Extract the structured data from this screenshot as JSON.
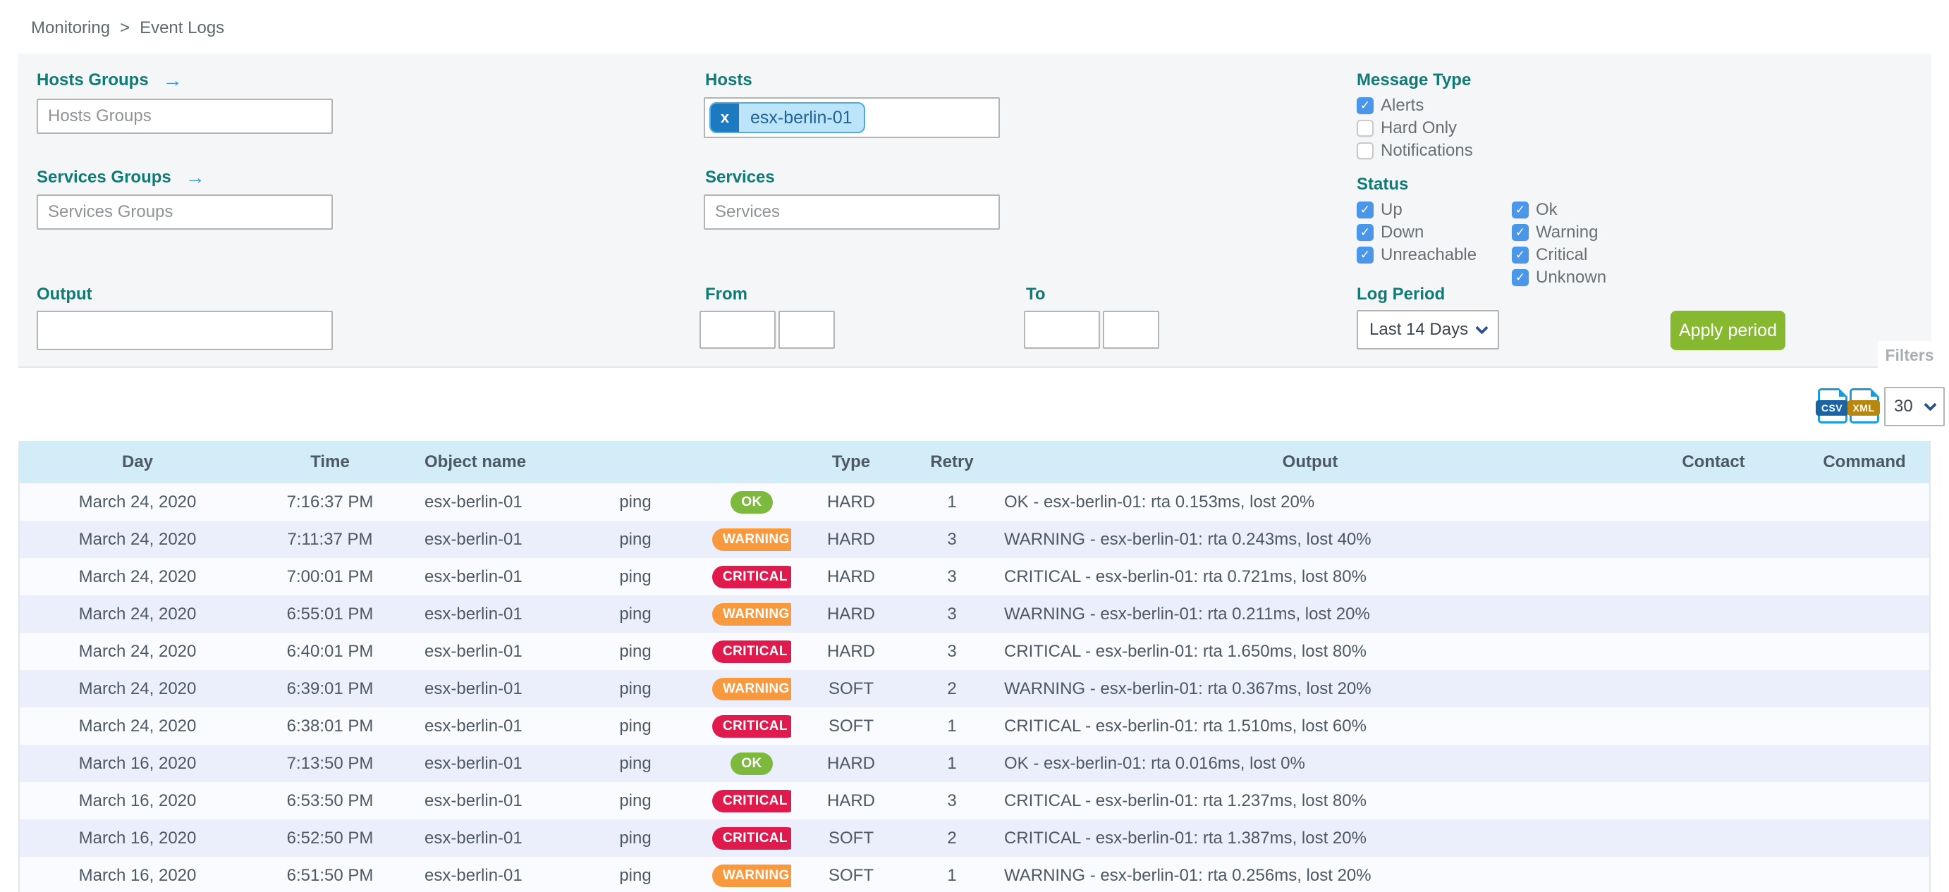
{
  "breadcrumb": {
    "items": [
      "Monitoring",
      "Event Logs"
    ],
    "separator": ">"
  },
  "filters": {
    "panel_label": "Filters",
    "hosts_groups": {
      "label": "Hosts Groups",
      "arrow_icon": "→",
      "placeholder": "Hosts Groups",
      "value": ""
    },
    "hosts": {
      "label": "Hosts",
      "selected_tags": [
        "esx-berlin-01"
      ],
      "remove_icon": "x"
    },
    "services_groups": {
      "label": "Services Groups",
      "arrow_icon": "→",
      "placeholder": "Services Groups",
      "value": ""
    },
    "services": {
      "label": "Services",
      "placeholder": "Services",
      "value": ""
    },
    "message_type": {
      "label": "Message Type",
      "options": [
        {
          "label": "Alerts",
          "checked": true
        },
        {
          "label": "Hard Only",
          "checked": false
        },
        {
          "label": "Notifications",
          "checked": false
        }
      ]
    },
    "status": {
      "label": "Status",
      "columns": [
        [
          {
            "label": "Up",
            "checked": true
          },
          {
            "label": "Down",
            "checked": true
          },
          {
            "label": "Unreachable",
            "checked": true
          }
        ],
        [
          {
            "label": "Ok",
            "checked": true
          },
          {
            "label": "Warning",
            "checked": true
          },
          {
            "label": "Critical",
            "checked": true
          },
          {
            "label": "Unknown",
            "checked": true
          }
        ]
      ]
    },
    "output": {
      "label": "Output",
      "value": ""
    },
    "from": {
      "label": "From",
      "date_value": "",
      "time_value": ""
    },
    "to": {
      "label": "To",
      "date_value": "",
      "time_value": ""
    },
    "log_period": {
      "label": "Log Period",
      "selected": "Last 14 Days"
    },
    "apply_button": "Apply period"
  },
  "toolbar": {
    "csv_icon": "CSV",
    "xml_icon": "XML",
    "page_size": "30"
  },
  "table": {
    "columns": [
      "Day",
      "Time",
      "Object name",
      "",
      "",
      "Type",
      "Retry",
      "Output",
      "Contact",
      "Command"
    ],
    "status_colors": {
      "OK": "#7cb93c",
      "WARNING": "#f8993d",
      "CRITICAL": "#e11a4d"
    },
    "partial_bottom_row": true,
    "rows": [
      {
        "day": "March 24, 2020",
        "time": "7:16:37 PM",
        "object": "esx-berlin-01",
        "service": "ping",
        "status": "OK",
        "type": "HARD",
        "retry": "1",
        "output": "OK - esx-berlin-01: rta 0.153ms, lost 20%",
        "contact": "",
        "command": ""
      },
      {
        "day": "March 24, 2020",
        "time": "7:11:37 PM",
        "object": "esx-berlin-01",
        "service": "ping",
        "status": "WARNING",
        "type": "HARD",
        "retry": "3",
        "output": "WARNING - esx-berlin-01: rta 0.243ms, lost 40%",
        "contact": "",
        "command": ""
      },
      {
        "day": "March 24, 2020",
        "time": "7:00:01 PM",
        "object": "esx-berlin-01",
        "service": "ping",
        "status": "CRITICAL",
        "type": "HARD",
        "retry": "3",
        "output": "CRITICAL - esx-berlin-01: rta 0.721ms, lost 80%",
        "contact": "",
        "command": ""
      },
      {
        "day": "March 24, 2020",
        "time": "6:55:01 PM",
        "object": "esx-berlin-01",
        "service": "ping",
        "status": "WARNING",
        "type": "HARD",
        "retry": "3",
        "output": "WARNING - esx-berlin-01: rta 0.211ms, lost 20%",
        "contact": "",
        "command": ""
      },
      {
        "day": "March 24, 2020",
        "time": "6:40:01 PM",
        "object": "esx-berlin-01",
        "service": "ping",
        "status": "CRITICAL",
        "type": "HARD",
        "retry": "3",
        "output": "CRITICAL - esx-berlin-01: rta 1.650ms, lost 80%",
        "contact": "",
        "command": ""
      },
      {
        "day": "March 24, 2020",
        "time": "6:39:01 PM",
        "object": "esx-berlin-01",
        "service": "ping",
        "status": "WARNING",
        "type": "SOFT",
        "retry": "2",
        "output": "WARNING - esx-berlin-01: rta 0.367ms, lost 20%",
        "contact": "",
        "command": ""
      },
      {
        "day": "March 24, 2020",
        "time": "6:38:01 PM",
        "object": "esx-berlin-01",
        "service": "ping",
        "status": "CRITICAL",
        "type": "SOFT",
        "retry": "1",
        "output": "CRITICAL - esx-berlin-01: rta 1.510ms, lost 60%",
        "contact": "",
        "command": ""
      },
      {
        "day": "March 16, 2020",
        "time": "7:13:50 PM",
        "object": "esx-berlin-01",
        "service": "ping",
        "status": "OK",
        "type": "HARD",
        "retry": "1",
        "output": "OK - esx-berlin-01: rta 0.016ms, lost 0%",
        "contact": "",
        "command": ""
      },
      {
        "day": "March 16, 2020",
        "time": "6:53:50 PM",
        "object": "esx-berlin-01",
        "service": "ping",
        "status": "CRITICAL",
        "type": "HARD",
        "retry": "3",
        "output": "CRITICAL - esx-berlin-01: rta 1.237ms, lost 80%",
        "contact": "",
        "command": ""
      },
      {
        "day": "March 16, 2020",
        "time": "6:52:50 PM",
        "object": "esx-berlin-01",
        "service": "ping",
        "status": "CRITICAL",
        "type": "SOFT",
        "retry": "2",
        "output": "CRITICAL - esx-berlin-01: rta 1.387ms, lost 20%",
        "contact": "",
        "command": ""
      },
      {
        "day": "March 16, 2020",
        "time": "6:51:50 PM",
        "object": "esx-berlin-01",
        "service": "ping",
        "status": "WARNING",
        "type": "SOFT",
        "retry": "1",
        "output": "WARNING - esx-berlin-01: rta 0.256ms, lost 20%",
        "contact": "",
        "command": ""
      }
    ]
  },
  "colors": {
    "accent_teal": "#127a74",
    "link_blue": "#3b99e0",
    "checkbox_blue": "#4a96e8",
    "apply_green": "#86b830",
    "table_header_blue": "#d2ecf8",
    "row_alt_blue": "#eaeffb",
    "ok_green": "#7cb93c",
    "warning_orange": "#f8993d",
    "critical_red": "#e11a4d"
  }
}
